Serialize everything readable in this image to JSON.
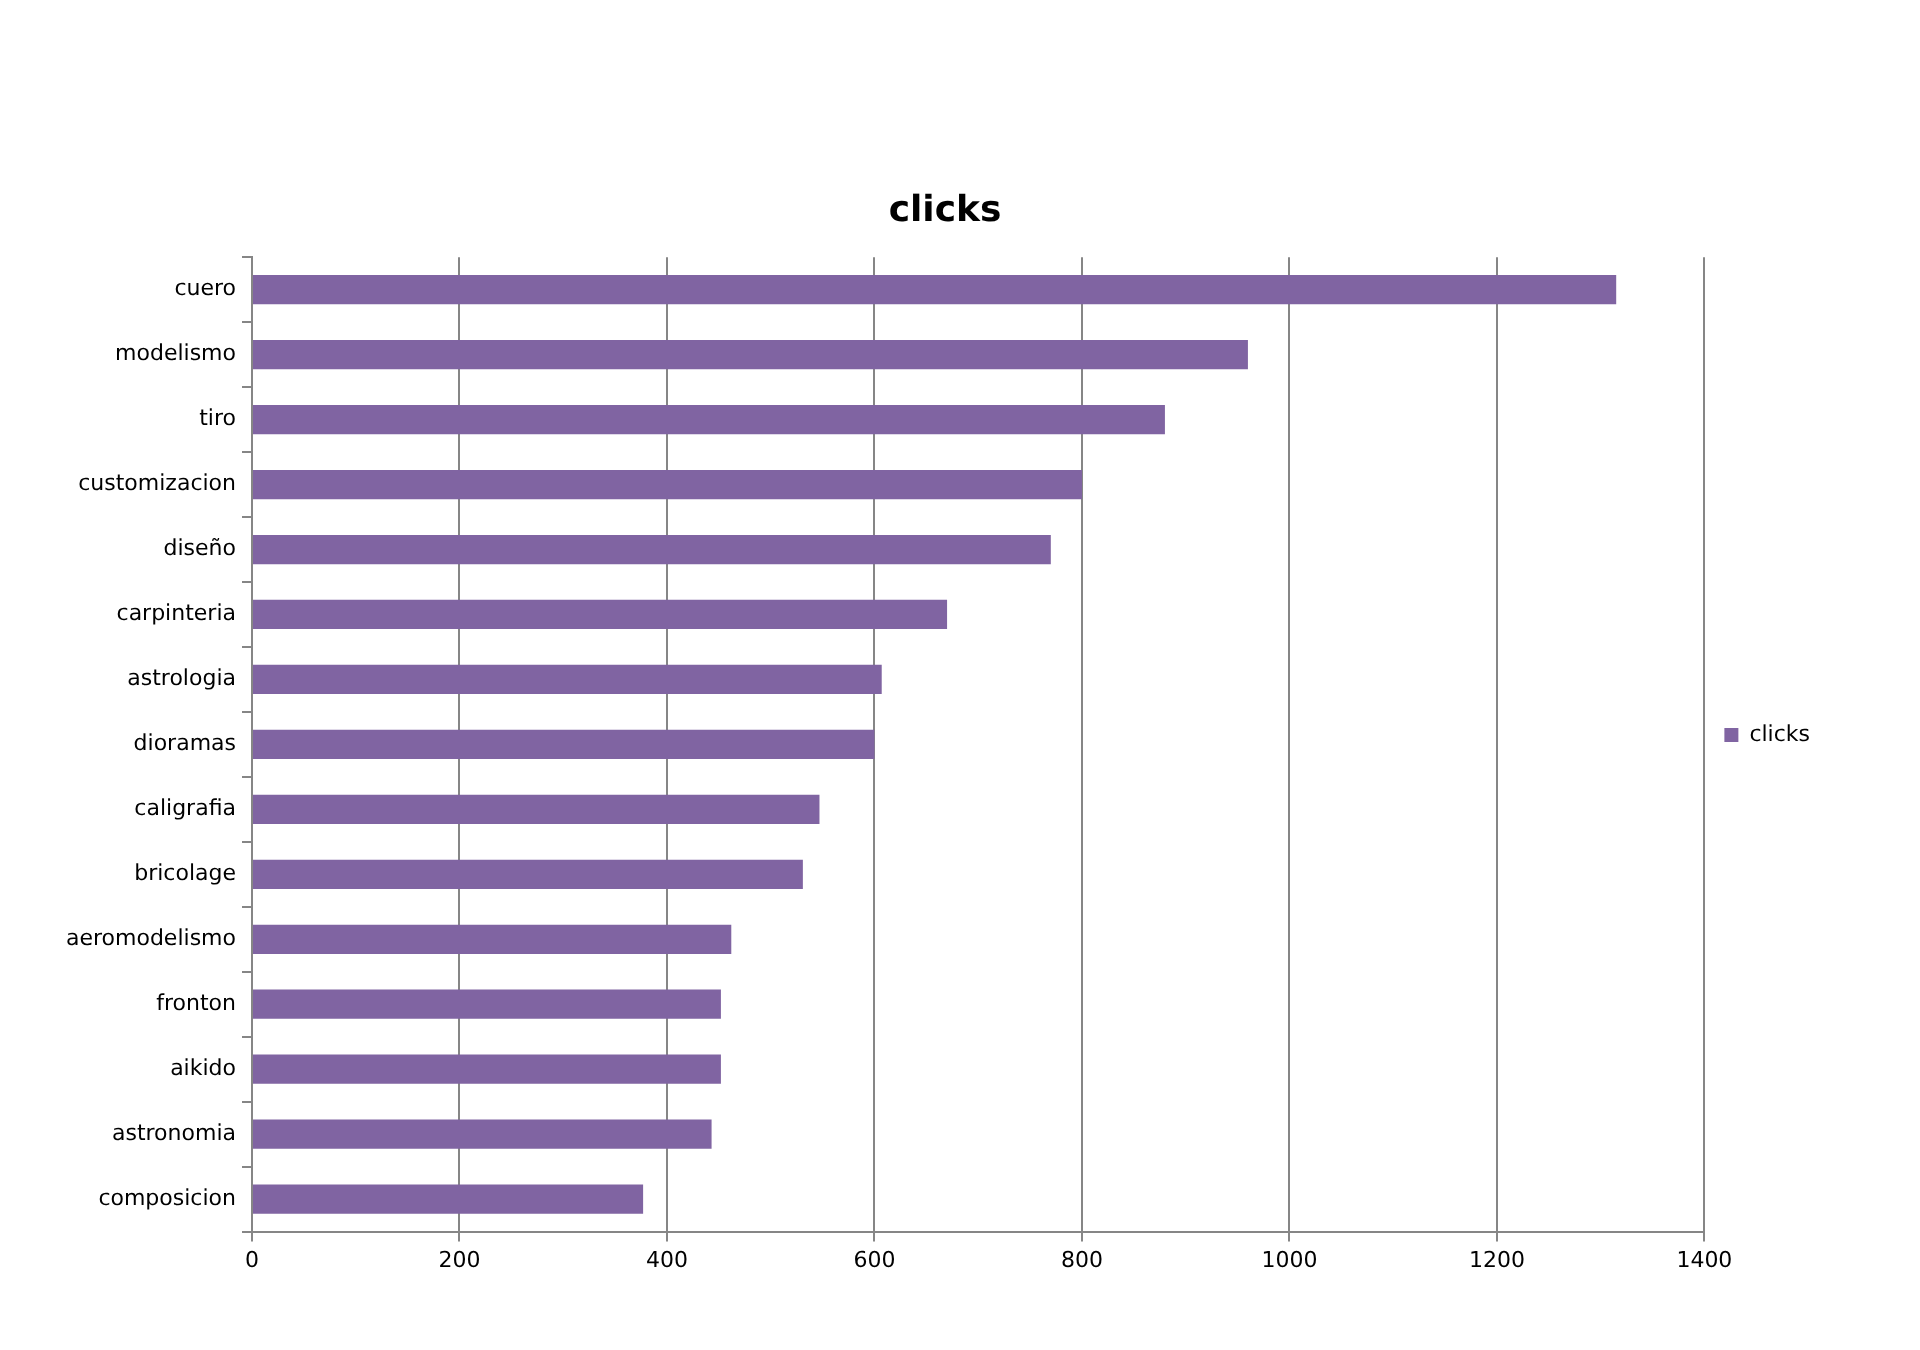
{
  "chart_data": {
    "type": "bar",
    "orientation": "horizontal",
    "title": "clicks",
    "categories": [
      "cuero",
      "modelismo",
      "tiro",
      "customizacion",
      "diseño",
      "carpinteria",
      "astrologia",
      "dioramas",
      "caligrafia",
      "bricolage",
      "aeromodelismo",
      "fronton",
      "aikido",
      "astronomia",
      "composicion"
    ],
    "series": [
      {
        "name": "clicks",
        "color": "#8064a2",
        "values": [
          1315,
          960,
          880,
          800,
          770,
          670,
          607,
          600,
          547,
          531,
          462,
          452,
          452,
          443,
          377
        ]
      }
    ],
    "xlim": [
      0,
      1400
    ],
    "xticks": [
      0,
      200,
      400,
      600,
      800,
      1000,
      1200,
      1400
    ],
    "grid": "x",
    "legend": "right"
  }
}
